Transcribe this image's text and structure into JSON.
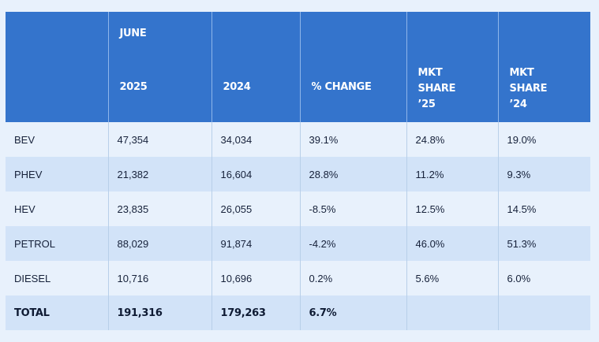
{
  "header": {
    "month": "JUNE",
    "col_2025": "2025",
    "col_2024": "2024",
    "col_change": "% CHANGE",
    "share25_lines": [
      "MKT",
      "SHARE",
      "’25"
    ],
    "share24_lines": [
      "MKT",
      "SHARE",
      "’24"
    ]
  },
  "rows": [
    {
      "label": "BEV",
      "y2025": "47,354",
      "y2024": "34,034",
      "change": "39.1%",
      "share25": "24.8%",
      "share24": "19.0%"
    },
    {
      "label": "PHEV",
      "y2025": "21,382",
      "y2024": "16,604",
      "change": "28.8%",
      "share25": "11.2%",
      "share24": "9.3%"
    },
    {
      "label": "HEV",
      "y2025": "23,835",
      "y2024": "26,055",
      "change": "-8.5%",
      "share25": "12.5%",
      "share24": "14.5%"
    },
    {
      "label": "PETROL",
      "y2025": "88,029",
      "y2024": "91,874",
      "change": "-4.2%",
      "share25": "46.0%",
      "share24": "51.3%"
    },
    {
      "label": "DIESEL",
      "y2025": "10,716",
      "y2024": "10,696",
      "change": "0.2%",
      "share25": "5.6%",
      "share24": "6.0%"
    }
  ],
  "total": {
    "label": "TOTAL",
    "y2025": "191,316",
    "y2024": "179,263",
    "change": "6.7%",
    "share25": "",
    "share24": ""
  },
  "colors": {
    "header_bg": "#3474cc",
    "row_light": "#e8f1fc",
    "row_dark": "#d2e3f8"
  }
}
